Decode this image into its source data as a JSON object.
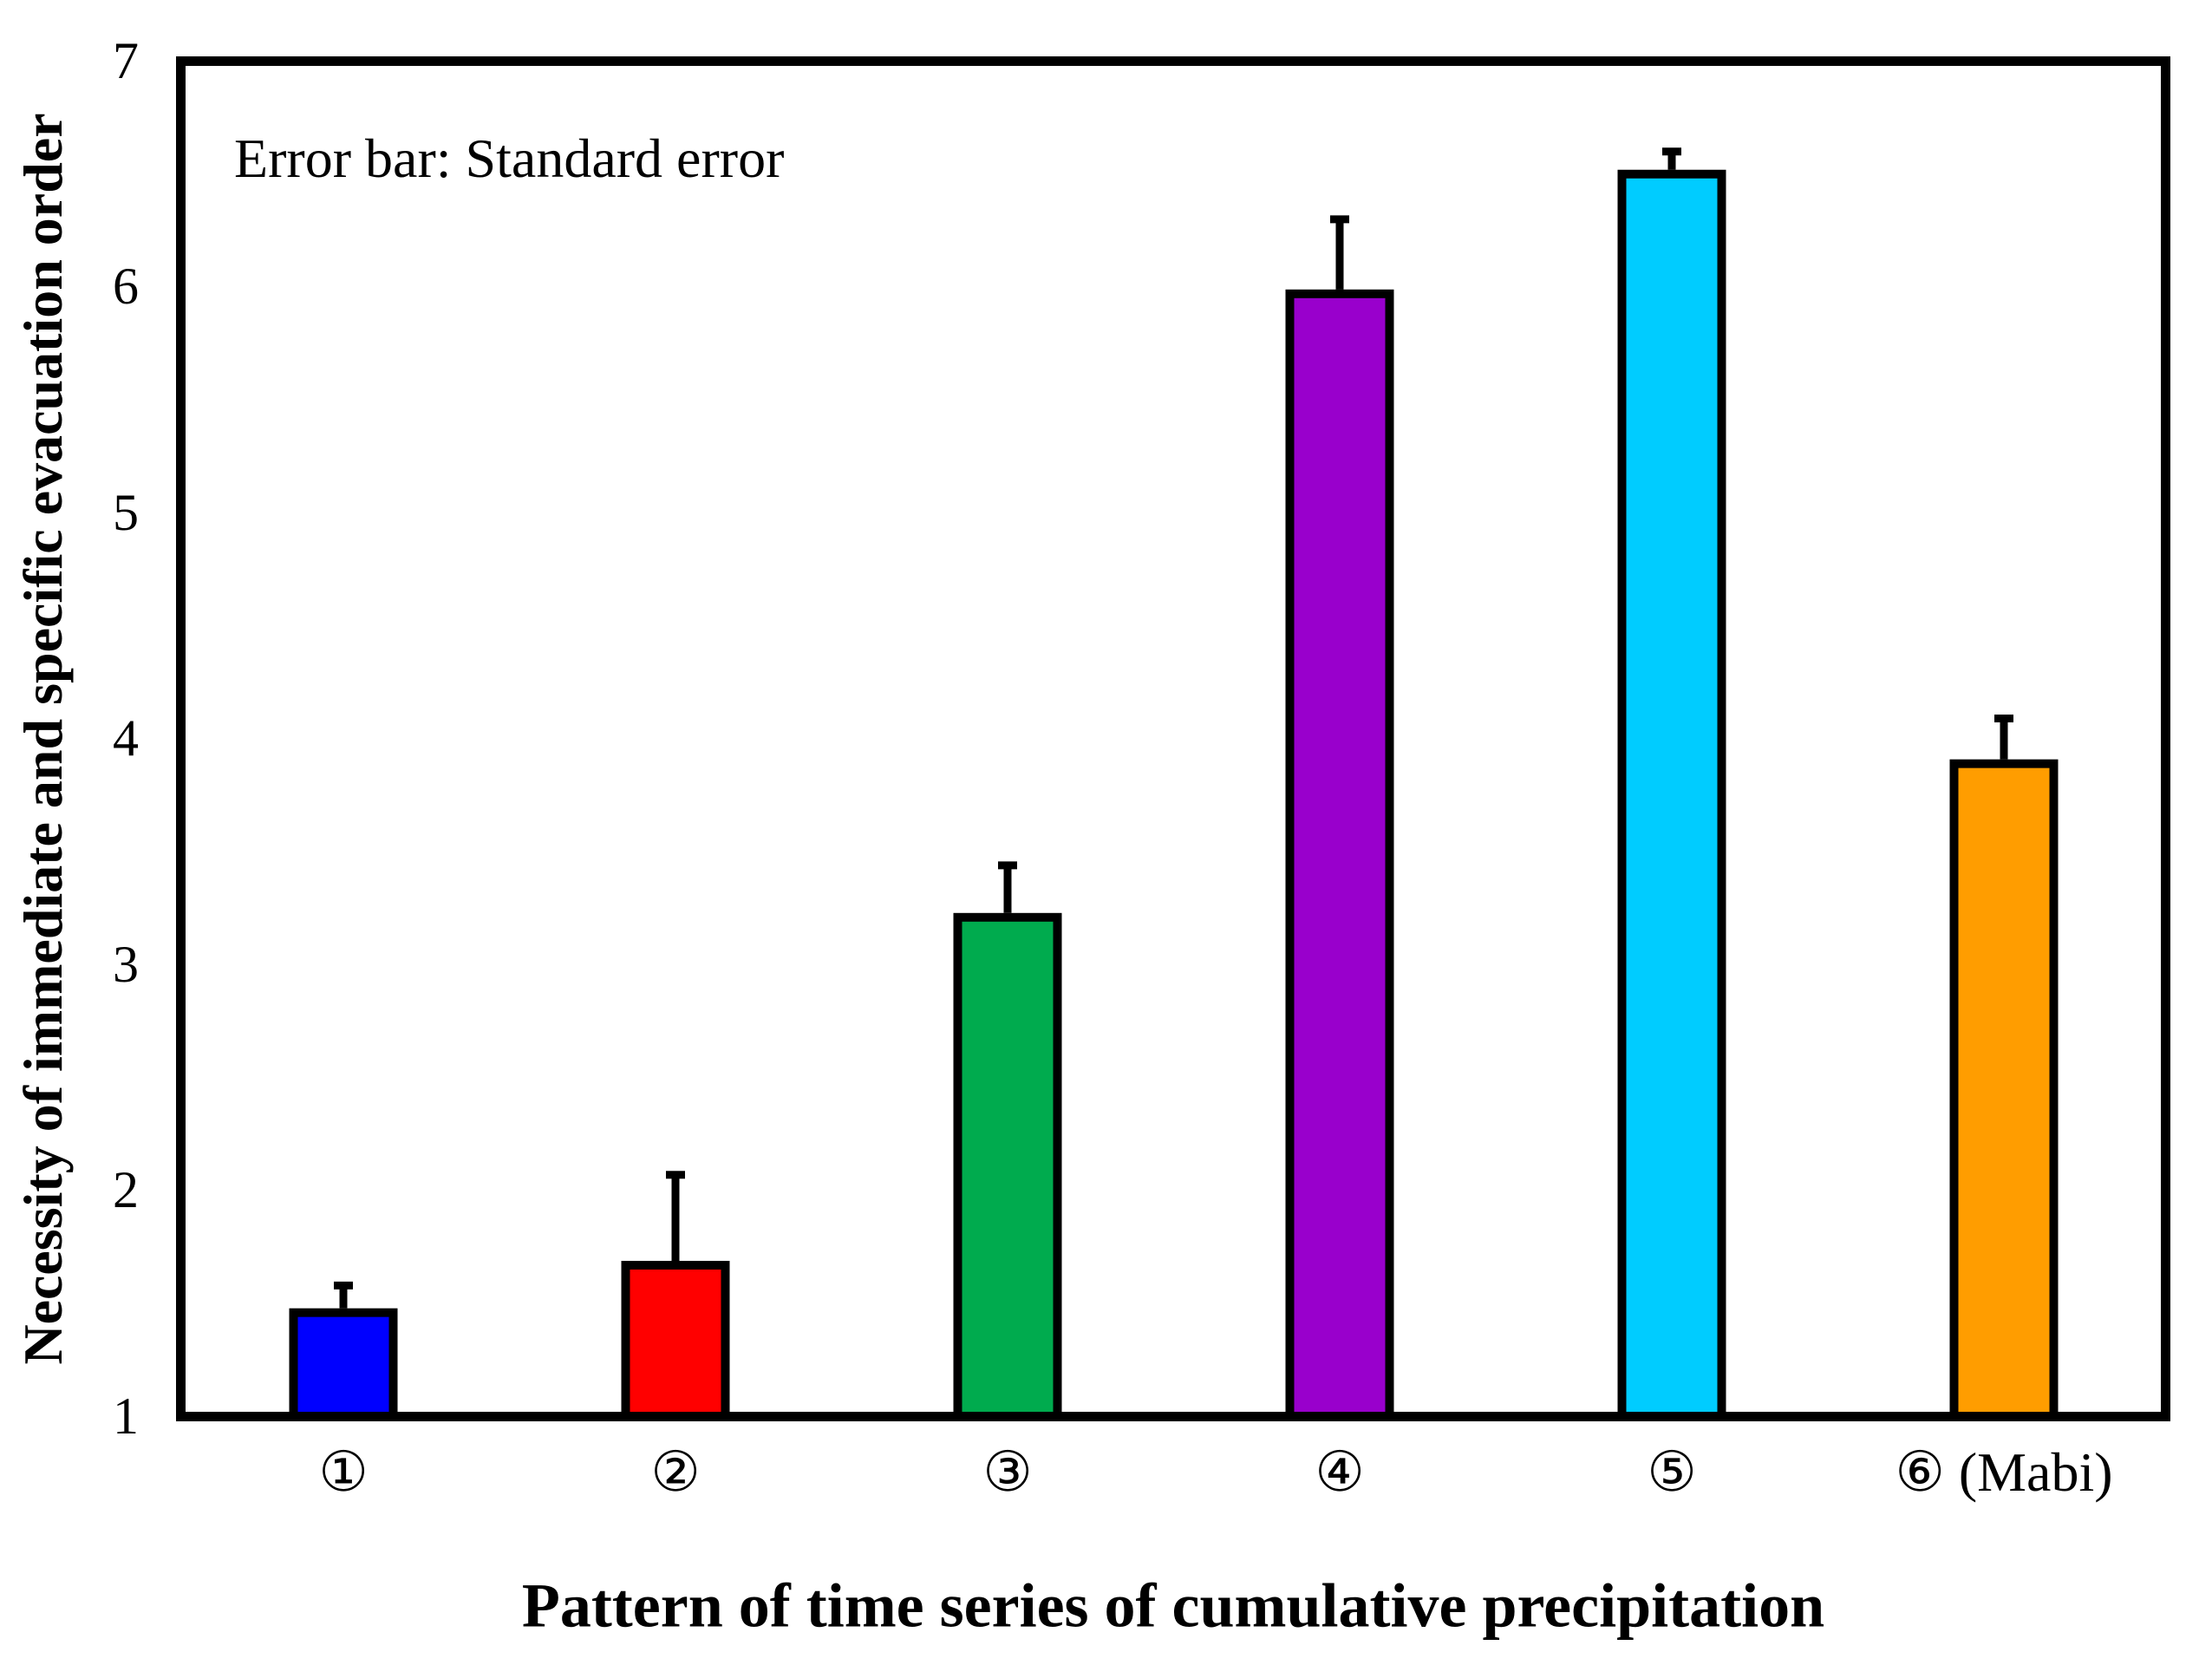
{
  "figure": {
    "annotation": "Error bar: Standard error"
  },
  "chart_data": {
    "type": "bar",
    "title": "",
    "xlabel": "Pattern of time series of cumulative precipitation",
    "ylabel": "Necessity of immediate and specific evacuation order",
    "annotation": "Error bar: Standard error",
    "categories": [
      "①",
      "②",
      "③",
      "④",
      "⑤",
      "⑥ (Mabi)"
    ],
    "values": [
      1.46,
      1.67,
      3.21,
      5.97,
      6.5,
      3.89
    ],
    "standard_errors": [
      0.12,
      0.4,
      0.23,
      0.33,
      0.1,
      0.2
    ],
    "error_bar_direction": "upper-only",
    "bar_colors": [
      "#0000FF",
      "#FF0000",
      "#00AB4E",
      "#9900CC",
      "#00CCFF",
      "#FF9D00"
    ],
    "bar_outline_color": "#000000",
    "frame_color": "#000000",
    "background_color": "#FFFFFF",
    "ylim": [
      1,
      7
    ],
    "y_ticks": [
      1,
      2,
      3,
      4,
      5,
      6,
      7
    ],
    "grid": false,
    "legend": "none"
  }
}
